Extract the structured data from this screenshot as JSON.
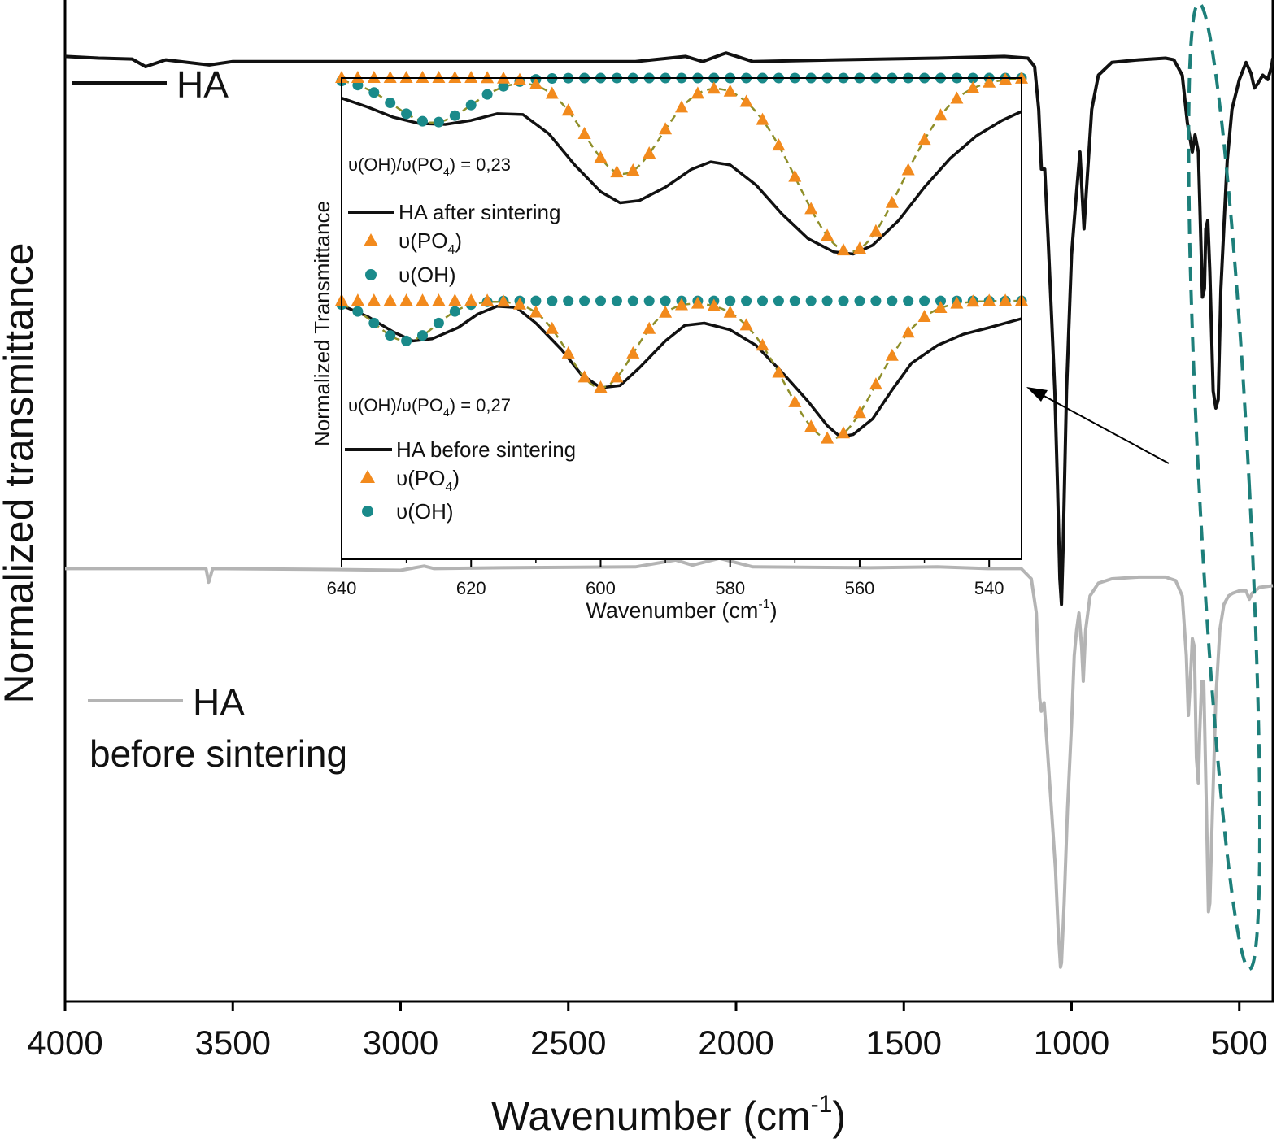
{
  "chart_data": [
    {
      "id": "main",
      "type": "line",
      "xlabel": "Wavenumber (cm",
      "xlabel_sup": "-1",
      "xlabel_close": ")",
      "ylabel": "Normalized transmittance",
      "xlim": [
        4000,
        400
      ],
      "x_reversed": true,
      "xticks": [
        4000,
        3500,
        3000,
        2500,
        2000,
        1500,
        1000,
        500
      ],
      "yticks_shown": false,
      "legend_placement": "top-left",
      "series": [
        {
          "name": "HA",
          "label_line2": "",
          "color": "#111111",
          "offset": 0.0,
          "points": [
            [
              4000,
              0.972
            ],
            [
              3900,
              0.97
            ],
            [
              3800,
              0.969
            ],
            [
              3760,
              0.96
            ],
            [
              3700,
              0.968
            ],
            [
              3570,
              0.962
            ],
            [
              3500,
              0.966
            ],
            [
              3000,
              0.966
            ],
            [
              2500,
              0.966
            ],
            [
              2300,
              0.966
            ],
            [
              2150,
              0.972
            ],
            [
              2100,
              0.966
            ],
            [
              2030,
              0.976
            ],
            [
              1950,
              0.966
            ],
            [
              1700,
              0.968
            ],
            [
              1400,
              0.97
            ],
            [
              1200,
              0.972
            ],
            [
              1130,
              0.97
            ],
            [
              1110,
              0.96
            ],
            [
              1098,
              0.91
            ],
            [
              1090,
              0.84
            ],
            [
              1080,
              0.84
            ],
            [
              1070,
              0.76
            ],
            [
              1060,
              0.67
            ],
            [
              1050,
              0.58
            ],
            [
              1042,
              0.47
            ],
            [
              1035,
              0.36
            ],
            [
              1030,
              0.33
            ],
            [
              1025,
              0.4
            ],
            [
              1015,
              0.58
            ],
            [
              1000,
              0.74
            ],
            [
              988,
              0.8
            ],
            [
              975,
              0.86
            ],
            [
              963,
              0.77
            ],
            [
              955,
              0.82
            ],
            [
              940,
              0.91
            ],
            [
              920,
              0.95
            ],
            [
              880,
              0.965
            ],
            [
              800,
              0.968
            ],
            [
              720,
              0.97
            ],
            [
              695,
              0.968
            ],
            [
              670,
              0.95
            ],
            [
              655,
              0.895
            ],
            [
              640,
              0.86
            ],
            [
              632,
              0.88
            ],
            [
              622,
              0.86
            ],
            [
              610,
              0.69
            ],
            [
              604,
              0.7
            ],
            [
              600,
              0.77
            ],
            [
              594,
              0.78
            ],
            [
              588,
              0.72
            ],
            [
              578,
              0.58
            ],
            [
              570,
              0.56
            ],
            [
              563,
              0.57
            ],
            [
              555,
              0.7
            ],
            [
              545,
              0.78
            ],
            [
              536,
              0.85
            ],
            [
              522,
              0.91
            ],
            [
              500,
              0.945
            ],
            [
              480,
              0.965
            ],
            [
              465,
              0.952
            ],
            [
              455,
              0.935
            ],
            [
              445,
              0.94
            ],
            [
              430,
              0.95
            ],
            [
              415,
              0.945
            ],
            [
              404,
              0.96
            ],
            [
              400,
              0.97
            ]
          ]
        },
        {
          "name": "HA",
          "label_line2": "before sintering",
          "color": "#b4b4b4",
          "offset": 0.0,
          "points": [
            [
              4000,
              0.372
            ],
            [
              3900,
              0.372
            ],
            [
              3700,
              0.372
            ],
            [
              3580,
              0.372
            ],
            [
              3572,
              0.356
            ],
            [
              3560,
              0.372
            ],
            [
              3200,
              0.371
            ],
            [
              3000,
              0.37
            ],
            [
              2930,
              0.375
            ],
            [
              2900,
              0.372
            ],
            [
              2700,
              0.373
            ],
            [
              2300,
              0.374
            ],
            [
              2180,
              0.382
            ],
            [
              2130,
              0.376
            ],
            [
              2050,
              0.384
            ],
            [
              1950,
              0.374
            ],
            [
              1600,
              0.373
            ],
            [
              1400,
              0.374
            ],
            [
              1250,
              0.372
            ],
            [
              1150,
              0.372
            ],
            [
              1120,
              0.36
            ],
            [
              1105,
              0.32
            ],
            [
              1095,
              0.22
            ],
            [
              1090,
              0.205
            ],
            [
              1082,
              0.215
            ],
            [
              1072,
              0.16
            ],
            [
              1060,
              0.09
            ],
            [
              1048,
              0.02
            ],
            [
              1040,
              -0.05
            ],
            [
              1033,
              -0.095
            ],
            [
              1030,
              -0.09
            ],
            [
              1022,
              -0.02
            ],
            [
              1012,
              0.09
            ],
            [
              1000,
              0.19
            ],
            [
              992,
              0.27
            ],
            [
              985,
              0.3
            ],
            [
              978,
              0.32
            ],
            [
              970,
              0.28
            ],
            [
              965,
              0.24
            ],
            [
              958,
              0.3
            ],
            [
              945,
              0.34
            ],
            [
              920,
              0.355
            ],
            [
              880,
              0.36
            ],
            [
              800,
              0.362
            ],
            [
              720,
              0.362
            ],
            [
              690,
              0.358
            ],
            [
              670,
              0.34
            ],
            [
              658,
              0.27
            ],
            [
              652,
              0.2
            ],
            [
              646,
              0.24
            ],
            [
              640,
              0.29
            ],
            [
              634,
              0.28
            ],
            [
              628,
              0.15
            ],
            [
              622,
              0.12
            ],
            [
              618,
              0.18
            ],
            [
              612,
              0.24
            ],
            [
              606,
              0.24
            ],
            [
              598,
              0.09
            ],
            [
              592,
              -0.03
            ],
            [
              588,
              -0.02
            ],
            [
              580,
              0.09
            ],
            [
              570,
              0.22
            ],
            [
              558,
              0.3
            ],
            [
              546,
              0.33
            ],
            [
              532,
              0.34
            ],
            [
              520,
              0.343
            ],
            [
              500,
              0.346
            ],
            [
              480,
              0.346
            ],
            [
              470,
              0.336
            ],
            [
              462,
              0.343
            ],
            [
              440,
              0.35
            ],
            [
              420,
              0.351
            ],
            [
              400,
              0.352
            ]
          ]
        }
      ],
      "annotation": {
        "type": "dashed-ellipse",
        "color": "#1d7f7a",
        "center_x": 545,
        "x_halfwidth": 85,
        "range_note": "encloses the 500-650 cm-1 region of both spectra"
      }
    },
    {
      "id": "inset",
      "type": "scatter-line",
      "xlabel": "Wavenumber (cm",
      "xlabel_sup": "-1",
      "xlabel_close": ")",
      "ylabel": "Normalized Transmittance",
      "xlim": [
        640,
        535
      ],
      "x_reversed": true,
      "xticks": [
        640,
        620,
        600,
        580,
        560,
        540
      ],
      "ylim": [
        -0.08,
        1.0
      ],
      "panels": [
        {
          "name": "after",
          "offset": 0.5,
          "ratio_prefix": "υ(OH)/υ(PO",
          "ratio_sub": "4",
          "ratio_suffix": ") = 0,23",
          "legend": [
            {
              "symbol": "line",
              "label": "HA after sintering",
              "color": "#111111"
            },
            {
              "symbol": "triangle",
              "label": "υ(PO",
              "sub": "4",
              "suffix": ")",
              "color": "#f28a1d"
            },
            {
              "symbol": "circle",
              "label": "υ(OH)",
              "color": "#1a8a8a"
            }
          ],
          "oh_gauss": {
            "center": 626,
            "depth": 0.1,
            "width": 6.0
          },
          "po4_gauss": [
            {
              "center": 596.5,
              "depth": 0.215,
              "width": 5.8
            },
            {
              "center": 561.5,
              "depth": 0.39,
              "width": 8.0
            }
          ],
          "experimental": [
            [
              640,
              0.955
            ],
            [
              636,
              0.935
            ],
            [
              632,
              0.912
            ],
            [
              628,
              0.898
            ],
            [
              624,
              0.896
            ],
            [
              620,
              0.905
            ],
            [
              616,
              0.92
            ],
            [
              612,
              0.918
            ],
            [
              608,
              0.875
            ],
            [
              604,
              0.805
            ],
            [
              600,
              0.745
            ],
            [
              597,
              0.72
            ],
            [
              594,
              0.725
            ],
            [
              590,
              0.755
            ],
            [
              586,
              0.795
            ],
            [
              583,
              0.812
            ],
            [
              580,
              0.805
            ],
            [
              576,
              0.76
            ],
            [
              572,
              0.695
            ],
            [
              568,
              0.64
            ],
            [
              564,
              0.61
            ],
            [
              561,
              0.605
            ],
            [
              558,
              0.625
            ],
            [
              554,
              0.68
            ],
            [
              550,
              0.755
            ],
            [
              546,
              0.82
            ],
            [
              542,
              0.87
            ],
            [
              538,
              0.905
            ],
            [
              535,
              0.925
            ]
          ]
        },
        {
          "name": "before",
          "offset": 0.0,
          "ratio_prefix": "υ(OH)/υ(PO",
          "ratio_sub": "4",
          "ratio_suffix": ") = 0,27",
          "legend": [
            {
              "symbol": "line",
              "label": "HA before sintering",
              "color": "#111111"
            },
            {
              "symbol": "triangle",
              "label": "υ(PO",
              "sub": "4",
              "suffix": ")",
              "color": "#f28a1d"
            },
            {
              "symbol": "circle",
              "label": "υ(OH)",
              "color": "#1a8a8a"
            }
          ],
          "oh_gauss": {
            "center": 630,
            "depth": 0.09,
            "width": 4.6
          },
          "po4_gauss": [
            {
              "center": 600,
              "depth": 0.195,
              "width": 5.0
            },
            {
              "center": 564.5,
              "depth": 0.31,
              "width": 7.0
            }
          ],
          "experimental": [
            [
              640,
              0.49
            ],
            [
              636,
              0.465
            ],
            [
              632,
              0.43
            ],
            [
              629,
              0.41
            ],
            [
              626,
              0.415
            ],
            [
              622,
              0.44
            ],
            [
              619,
              0.47
            ],
            [
              616,
              0.488
            ],
            [
              613,
              0.485
            ],
            [
              610,
              0.45
            ],
            [
              606,
              0.39
            ],
            [
              603,
              0.335
            ],
            [
              600,
              0.305
            ],
            [
              597,
              0.31
            ],
            [
              594,
              0.35
            ],
            [
              590,
              0.41
            ],
            [
              587,
              0.445
            ],
            [
              584,
              0.45
            ],
            [
              580,
              0.435
            ],
            [
              576,
              0.4
            ],
            [
              572,
              0.34
            ],
            [
              568,
              0.275
            ],
            [
              565,
              0.22
            ],
            [
              563,
              0.195
            ],
            [
              561,
              0.2
            ],
            [
              558,
              0.235
            ],
            [
              555,
              0.3
            ],
            [
              552,
              0.36
            ],
            [
              548,
              0.4
            ],
            [
              544,
              0.425
            ],
            [
              540,
              0.44
            ],
            [
              535,
              0.46
            ]
          ]
        }
      ]
    }
  ]
}
